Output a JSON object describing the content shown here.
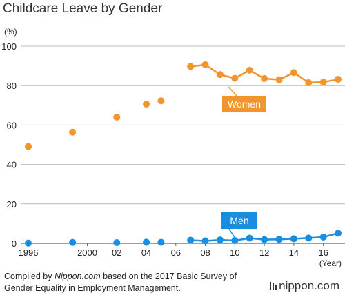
{
  "title": "Childcare Leave by Gender",
  "source": {
    "prefix": "Compiled by ",
    "site": "Nippon.com",
    "suffix_line1": " based on the 2017 Basic Survey of",
    "line2": "Gender Equality in Employment Management."
  },
  "brand": "nippon.com",
  "chart_data": {
    "type": "line",
    "title": "Childcare Leave by Gender",
    "ylabel": "(%)",
    "xlabel": "(Year)",
    "ylim": [
      0,
      100
    ],
    "y_ticks": [
      0,
      20,
      40,
      60,
      80,
      100
    ],
    "xlim": [
      1996,
      2017
    ],
    "x_ticks": [
      {
        "year": 1996,
        "label": "1996"
      },
      {
        "year": 2000,
        "label": "2000"
      },
      {
        "year": 2002,
        "label": "02"
      },
      {
        "year": 2004,
        "label": "04"
      },
      {
        "year": 2006,
        "label": "06"
      },
      {
        "year": 2008,
        "label": "08"
      },
      {
        "year": 2010,
        "label": "10"
      },
      {
        "year": 2012,
        "label": "12"
      },
      {
        "year": 2014,
        "label": "14"
      },
      {
        "year": 2016,
        "label": "16"
      }
    ],
    "grid": true,
    "series": [
      {
        "name": "Women",
        "color": "#f0962e",
        "points": [
          {
            "x": 1996,
            "y": 49.1
          },
          {
            "x": 1999,
            "y": 56.4
          },
          {
            "x": 2002,
            "y": 64.0
          },
          {
            "x": 2004,
            "y": 70.6
          },
          {
            "x": 2005,
            "y": 72.3
          },
          {
            "x": 2007,
            "y": 89.7
          },
          {
            "x": 2008,
            "y": 90.6
          },
          {
            "x": 2009,
            "y": 85.6
          },
          {
            "x": 2010,
            "y": 83.7
          },
          {
            "x": 2011,
            "y": 87.8
          },
          {
            "x": 2012,
            "y": 83.6
          },
          {
            "x": 2013,
            "y": 83.0
          },
          {
            "x": 2014,
            "y": 86.6
          },
          {
            "x": 2015,
            "y": 81.5
          },
          {
            "x": 2016,
            "y": 81.8
          },
          {
            "x": 2017,
            "y": 83.2
          }
        ],
        "connected_from": 2007
      },
      {
        "name": "Men",
        "color": "#1a8de0",
        "points": [
          {
            "x": 1996,
            "y": 0.12
          },
          {
            "x": 1999,
            "y": 0.42
          },
          {
            "x": 2002,
            "y": 0.33
          },
          {
            "x": 2004,
            "y": 0.56
          },
          {
            "x": 2005,
            "y": 0.5
          },
          {
            "x": 2007,
            "y": 1.56
          },
          {
            "x": 2008,
            "y": 1.23
          },
          {
            "x": 2009,
            "y": 1.72
          },
          {
            "x": 2010,
            "y": 1.38
          },
          {
            "x": 2011,
            "y": 2.63
          },
          {
            "x": 2012,
            "y": 1.89
          },
          {
            "x": 2013,
            "y": 2.03
          },
          {
            "x": 2014,
            "y": 2.3
          },
          {
            "x": 2015,
            "y": 2.65
          },
          {
            "x": 2016,
            "y": 3.16
          },
          {
            "x": 2017,
            "y": 5.14
          }
        ],
        "connected_from": 2007
      }
    ]
  }
}
